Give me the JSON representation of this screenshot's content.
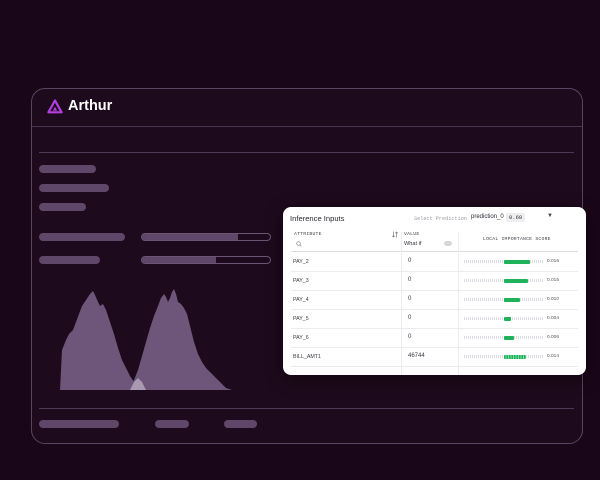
{
  "app": {
    "name": "Arthur"
  },
  "panel": {
    "title": "Inference Inputs",
    "select_label": "Select Prediction",
    "selected_prediction": "prediction_0",
    "selected_score": "0.60",
    "columns": {
      "attribute": "ATTRIBUTE",
      "value": "VALUE",
      "what_if": "What if",
      "importance": "LOCAL IMPORTANCE SCORE"
    },
    "rows": [
      {
        "attribute": "PAY_2",
        "value": "0",
        "score": "0.016",
        "importance": 0.016
      },
      {
        "attribute": "PAY_3",
        "value": "0",
        "score": "0.015",
        "importance": 0.015
      },
      {
        "attribute": "PAY_4",
        "value": "0",
        "score": "0.010",
        "importance": 0.01
      },
      {
        "attribute": "PAY_5",
        "value": "0",
        "score": "0.004",
        "importance": 0.004
      },
      {
        "attribute": "PAY_6",
        "value": "0",
        "score": "0.006",
        "importance": 0.006
      },
      {
        "attribute": "BILL_AMT1",
        "value": "46744",
        "score": "0.014",
        "importance": 0.014
      }
    ]
  },
  "background_bars": [
    {
      "fill_fraction": 0.75
    },
    {
      "fill_fraction": 0.58
    }
  ],
  "colors": {
    "accent": "#b43ee0",
    "importance_bar": "#1fb25a",
    "placeholder": "#5e4769",
    "background": "#1a0619"
  }
}
